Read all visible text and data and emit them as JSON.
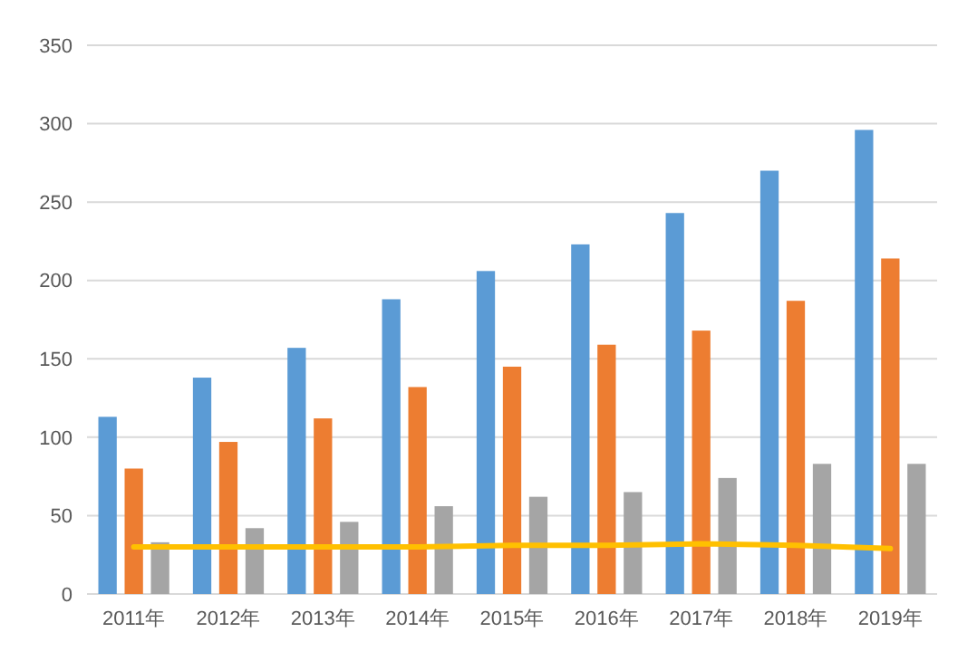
{
  "chart_data": {
    "type": "bar",
    "categories": [
      "2011年",
      "2012年",
      "2013年",
      "2014年",
      "2015年",
      "2016年",
      "2017年",
      "2018年",
      "2019年"
    ],
    "series": [
      {
        "color": "#5b9bd5",
        "values": [
          113,
          138,
          157,
          188,
          206,
          223,
          243,
          270,
          296
        ]
      },
      {
        "color": "#ed7d31",
        "values": [
          80,
          97,
          112,
          132,
          145,
          159,
          168,
          187,
          214
        ]
      },
      {
        "color": "#a5a5a5",
        "values": [
          33,
          42,
          46,
          56,
          62,
          65,
          74,
          83,
          83
        ]
      },
      {
        "type": "line",
        "color": "#ffc000",
        "values": [
          30,
          30,
          30,
          30,
          31,
          31,
          32,
          31,
          29
        ]
      }
    ],
    "ylim": [
      0,
      350
    ],
    "yticks": [
      0,
      50,
      100,
      150,
      200,
      250,
      300,
      350
    ],
    "grid": "y"
  }
}
